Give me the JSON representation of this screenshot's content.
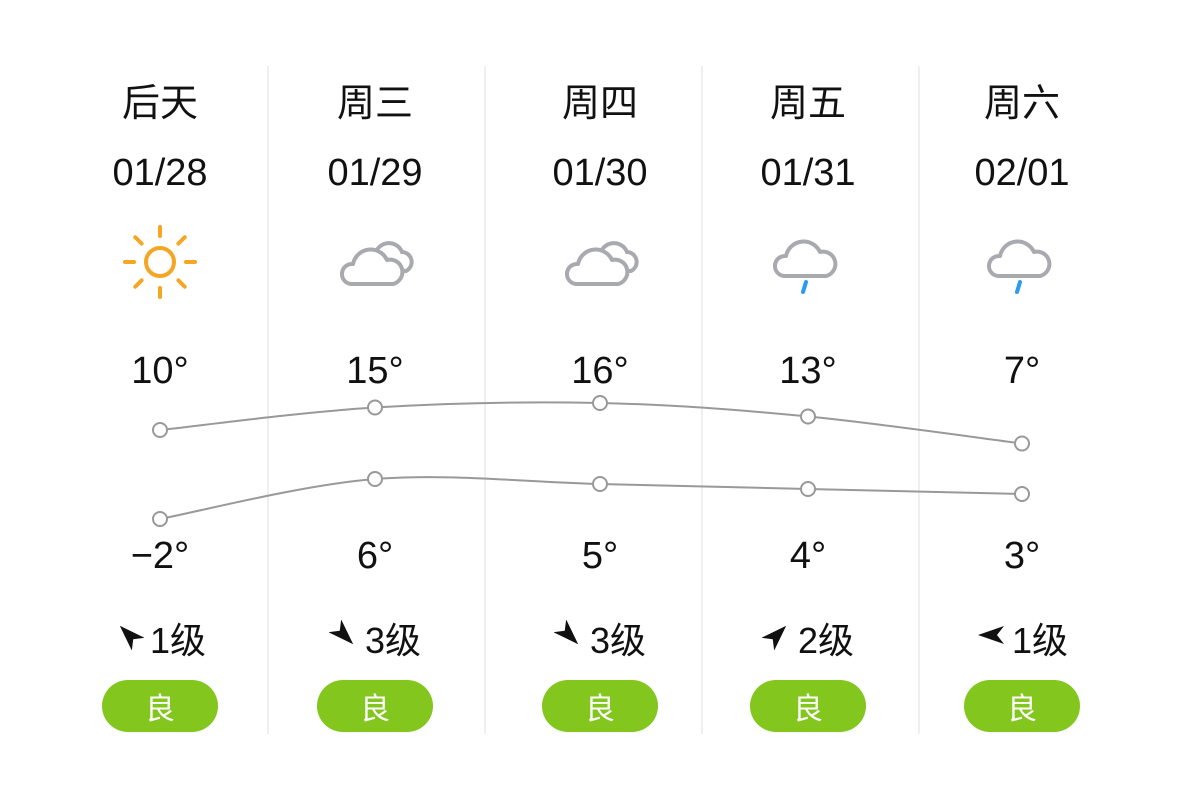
{
  "colors": {
    "aqi_good": "#82c61e",
    "line": "#999999",
    "sun": "#f5a623",
    "cloud": "#a9a9b0",
    "rain": "#2a9cf0"
  },
  "days": [
    {
      "dow": "后天",
      "date": "01/28",
      "weather_icon": "sun-icon",
      "high": "10°",
      "low": "−2°",
      "high_value": 10,
      "low_value": -2,
      "wind_icon": "arrow-northwest-icon",
      "wind": "1级",
      "aqi": "良"
    },
    {
      "dow": "周三",
      "date": "01/29",
      "weather_icon": "cloudy-icon",
      "high": "15°",
      "low": "6°",
      "high_value": 15,
      "low_value": 6,
      "wind_icon": "arrow-southeast-icon",
      "wind": "3级",
      "aqi": "良"
    },
    {
      "dow": "周四",
      "date": "01/30",
      "weather_icon": "cloudy-icon",
      "high": "16°",
      "low": "5°",
      "high_value": 16,
      "low_value": 5,
      "wind_icon": "arrow-southeast-icon",
      "wind": "3级",
      "aqi": "良"
    },
    {
      "dow": "周五",
      "date": "01/31",
      "weather_icon": "light-rain-icon",
      "high": "13°",
      "low": "4°",
      "high_value": 13,
      "low_value": 4,
      "wind_icon": "arrow-northeast-icon",
      "wind": "2级",
      "aqi": "良"
    },
    {
      "dow": "周六",
      "date": "02/01",
      "weather_icon": "light-rain-icon",
      "high": "7°",
      "low": "3°",
      "high_value": 7,
      "low_value": 3,
      "wind_icon": "arrow-west-icon",
      "wind": "1级",
      "aqi": "良"
    }
  ]
}
